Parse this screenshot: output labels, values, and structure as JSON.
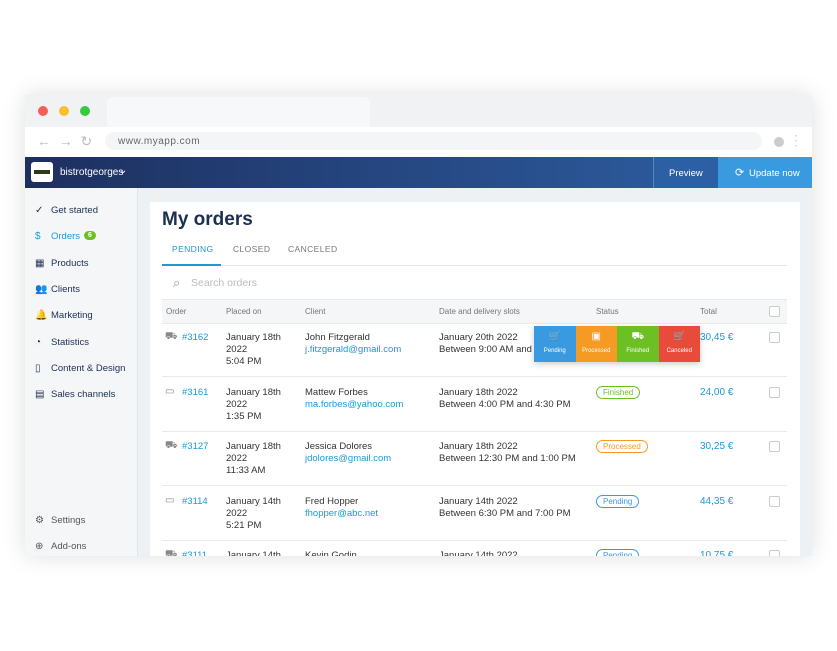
{
  "browser": {
    "url": "www.myapp.com"
  },
  "header": {
    "store": "bistrotgeorges",
    "preview": "Preview",
    "update": "Update now"
  },
  "sidebar": {
    "items": [
      {
        "label": "Get started"
      },
      {
        "label": "Orders",
        "badge": "6"
      },
      {
        "label": "Products"
      },
      {
        "label": "Clients"
      },
      {
        "label": "Marketing"
      },
      {
        "label": "Statistics"
      },
      {
        "label": "Content & Design"
      },
      {
        "label": "Sales channels"
      }
    ],
    "bottom": [
      {
        "label": "Settings"
      },
      {
        "label": "Add-ons"
      }
    ]
  },
  "page": {
    "title": "My orders",
    "tabs": [
      "PENDING",
      "CLOSED",
      "CANCELED"
    ],
    "search": "Search orders"
  },
  "table": {
    "columns": [
      "Order",
      "Placed on",
      "Client",
      "Date and delivery slots",
      "Status",
      "Total"
    ],
    "rows": [
      {
        "order": "#3162",
        "placed": "January 18th 2022",
        "time": "5:04 PM",
        "client": "John Fitzgerald",
        "email": "j.fitzgerald@gmail.com",
        "date": "January 20th 2022",
        "slot": "Between 9:00 AM and 9:",
        "total": "30,45 €"
      },
      {
        "order": "#3161",
        "placed": "January 18th 2022",
        "time": "1:35 PM",
        "client": "Mattew Forbes",
        "email": "ma.forbes@yahoo.com",
        "date": "January 18th 2022",
        "slot": "Between 4:00 PM and 4:30 PM",
        "status": "Finished",
        "total": "24,00 €"
      },
      {
        "order": "#3127",
        "placed": "January 18th 2022",
        "time": "11:33 AM",
        "client": "Jessica Dolores",
        "email": "jdolores@gmail.com",
        "date": "January 18th 2022",
        "slot": "Between 12:30 PM and 1:00 PM",
        "status": "Processed",
        "total": "30,25 €"
      },
      {
        "order": "#3114",
        "placed": "January 14th 2022",
        "time": "5:21 PM",
        "client": "Fred Hopper",
        "email": "fhopper@abc.net",
        "date": "January 14th 2022",
        "slot": "Between 6:30 PM and 7:00 PM",
        "status": "Pending",
        "total": "44,35 €"
      },
      {
        "order": "#3111",
        "placed": "January 14th",
        "client": "Kevin Godin",
        "date": "January 14th 2022",
        "status": "Pending",
        "total": "10,75 €"
      }
    ]
  },
  "status_menu": [
    "Pending",
    "Processed",
    "Finished",
    "Canceled"
  ]
}
